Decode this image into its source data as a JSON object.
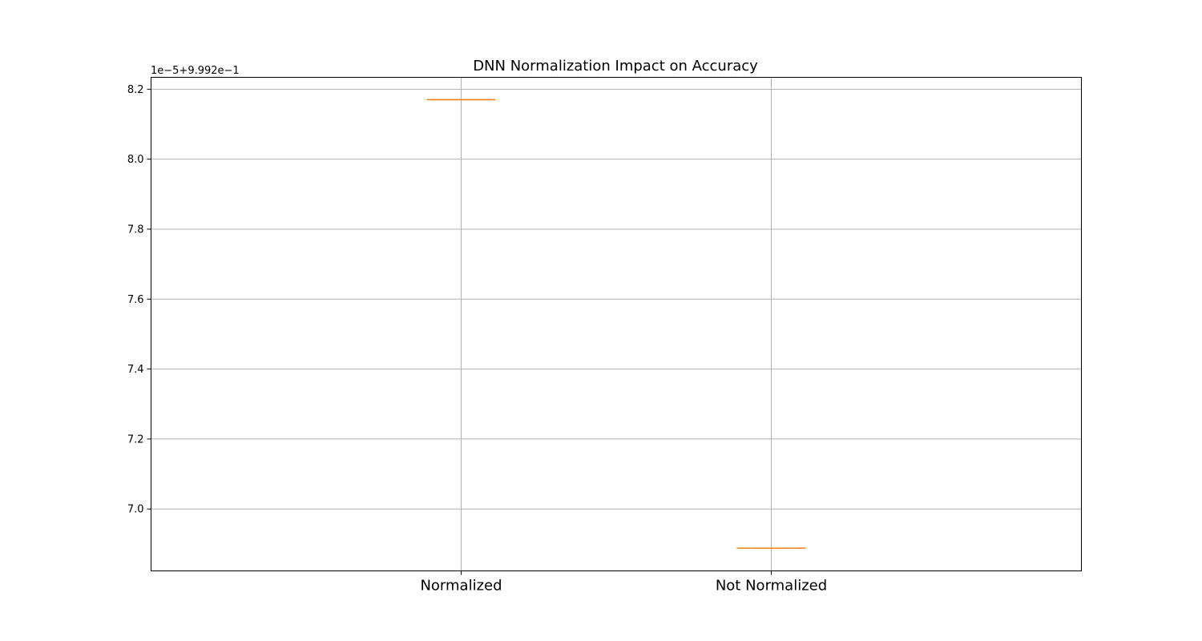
{
  "chart_data": {
    "type": "box",
    "title": "DNN Normalization Impact on Accuracy",
    "xlabel": "",
    "ylabel": "",
    "y_offset_label": "1e−5+9.992e−1",
    "categories": [
      "Normalized",
      "Not Normalized"
    ],
    "values": [
      8.17,
      6.888
    ],
    "ylim": [
      6.823,
      8.234
    ],
    "yticks": [
      7.0,
      7.2,
      7.4,
      7.6,
      7.8,
      8.0,
      8.2
    ],
    "ytick_labels": [
      "7.0",
      "7.2",
      "7.4",
      "7.6",
      "7.8",
      "8.0",
      "8.2"
    ],
    "grid": true,
    "median_color": "#ff7f0e",
    "box_color": "#000000"
  }
}
